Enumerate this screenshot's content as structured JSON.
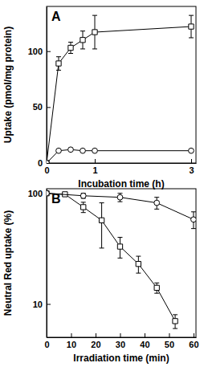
{
  "chart_data": [
    {
      "type": "line",
      "title": "A",
      "x_label": "Incubation time (h)",
      "y_label": "Uptake (pmol/mg protein)",
      "x": [
        0,
        0.25,
        0.5,
        0.75,
        1,
        3
      ],
      "xlim": [
        0,
        3.1
      ],
      "xticks": [
        0,
        1,
        3
      ],
      "ylim": [
        0,
        140
      ],
      "yticks": [
        0,
        50,
        100
      ],
      "series": [
        {
          "color": "#000000",
          "marker": "square",
          "values": [
            0,
            89,
            103,
            110,
            117,
            122
          ],
          "errors": [
            0,
            6,
            5,
            8,
            15,
            10
          ]
        },
        {
          "color": "#000000",
          "marker": "circle",
          "values": [
            0,
            11,
            12,
            11,
            11,
            11
          ],
          "errors": [
            0,
            1,
            1,
            1,
            1,
            1
          ]
        }
      ]
    },
    {
      "type": "line",
      "title": "B",
      "x_label": "Irradiation time (min)",
      "y_label": "Neutral Red uptake (%)",
      "log": "y",
      "xlim": [
        0,
        61
      ],
      "xticks": [
        0,
        10,
        20,
        30,
        40,
        50,
        60
      ],
      "ylim": [
        5,
        110
      ],
      "yticks": [
        10,
        100
      ],
      "series": [
        {
          "color": "#000000",
          "marker": "square",
          "x": [
            0,
            7.5,
            15,
            22.5,
            30,
            37.5,
            45,
            52.5
          ],
          "values": [
            100,
            98,
            75,
            57,
            33,
            23,
            14,
            7
          ],
          "errors": [
            0,
            2,
            8,
            25,
            7,
            4,
            1.5,
            1
          ]
        },
        {
          "color": "#000000",
          "marker": "circle",
          "x": [
            0,
            15,
            30,
            45,
            60
          ],
          "values": [
            100,
            95,
            92,
            82,
            58
          ],
          "errors": [
            0,
            5,
            8,
            10,
            10
          ]
        }
      ]
    }
  ]
}
